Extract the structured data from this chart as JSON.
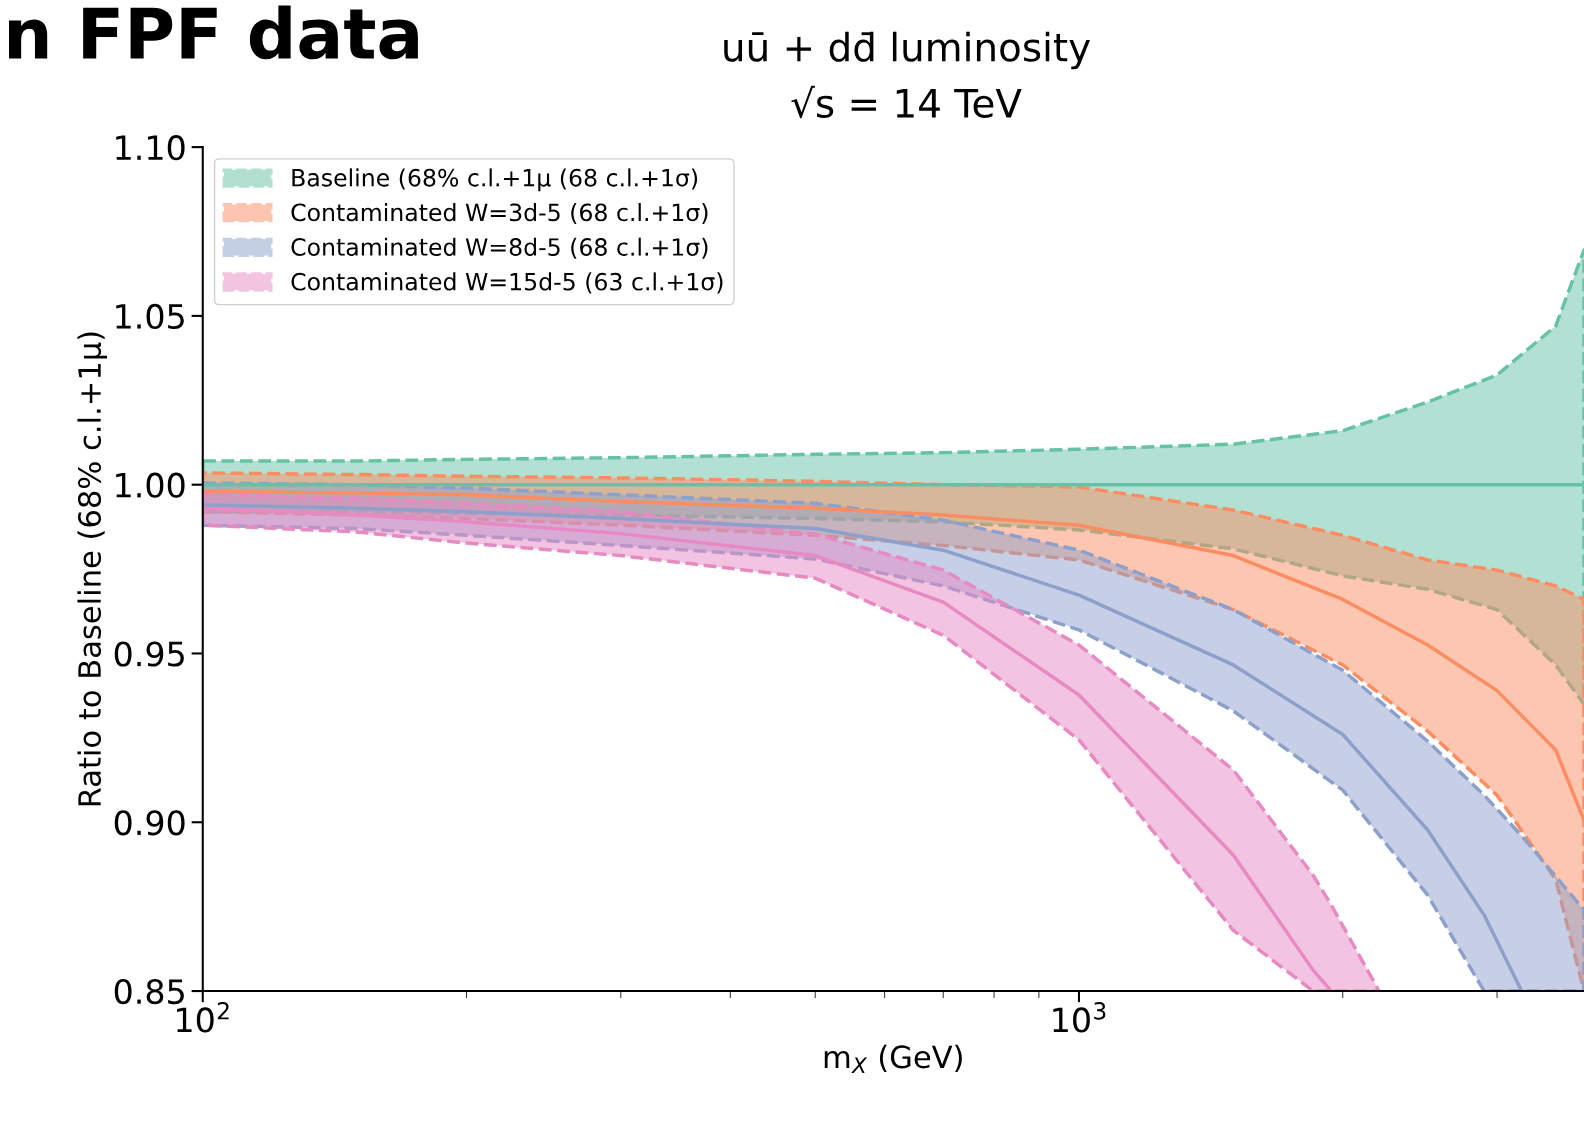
{
  "chart_data": {
    "type": "line",
    "title": "uū + dd̄ luminosity",
    "subtitle": "√s = 14 TeV",
    "xlabel": "m$_{X}$ (GeV)",
    "ylabel": "Ratio to Baseline (68% c.l.+1μ)",
    "annotations": [
      "n FPF data"
    ],
    "log": "x",
    "xlim": [
      100,
      3770
    ],
    "xticks": [
      {
        "value": 100,
        "label": "10$^{2}$"
      },
      {
        "value": 1000,
        "label": "10$^{3}$"
      }
    ],
    "ylim": [
      0.85,
      1.1
    ],
    "yticks": [
      {
        "value": 0.85,
        "label": "0.85"
      },
      {
        "value": 0.9,
        "label": "0.90"
      },
      {
        "value": 0.95,
        "label": "0.95"
      },
      {
        "value": 1.0,
        "label": "1.00"
      },
      {
        "value": 1.05,
        "label": "1.05"
      },
      {
        "value": 1.1,
        "label": "1.10"
      }
    ],
    "grid": false,
    "legend": "top left",
    "line_style": "solid",
    "series": [
      {
        "name": "Baseline (68% c.l.+1μ (68 c.l.+1σ)",
        "color": "#66c2a5",
        "x": [
          100,
          150,
          200,
          300,
          500,
          700,
          1000,
          1500,
          2000,
          2500,
          3000,
          3500,
          3770
        ],
        "values": [
          1.0,
          1.0,
          1.0,
          1.0,
          1.0,
          1.0,
          1.0,
          1.0,
          1.0,
          1.0,
          1.0,
          1.0,
          1.0
        ],
        "lower": [
          0.992,
          0.992,
          0.9915,
          0.991,
          0.99,
          0.989,
          0.9866,
          0.981,
          0.973,
          0.969,
          0.963,
          0.9466,
          0.935
        ],
        "upper": [
          1.007,
          1.007,
          1.0075,
          1.008,
          1.009,
          1.0095,
          1.0105,
          1.012,
          1.016,
          1.0245,
          1.0325,
          1.047,
          1.0695
        ]
      },
      {
        "name": "Contaminated W=3d-5 (68 c.l.+1σ)",
        "color": "#fc8d62",
        "x": [
          100,
          150,
          200,
          300,
          500,
          700,
          1000,
          1500,
          2000,
          2500,
          3000,
          3500,
          3770
        ],
        "values": [
          0.998,
          0.9975,
          0.997,
          0.995,
          0.993,
          0.991,
          0.988,
          0.979,
          0.966,
          0.9525,
          0.939,
          0.9214,
          0.9006
        ],
        "lower": [
          0.992,
          0.991,
          0.99,
          0.988,
          0.985,
          0.982,
          0.9777,
          0.963,
          0.9466,
          0.927,
          0.908,
          0.883,
          0.85
        ],
        "upper": [
          1.0035,
          1.003,
          1.0025,
          1.002,
          1.001,
          1.0,
          0.9993,
          0.9925,
          0.985,
          0.9777,
          0.9747,
          0.97,
          0.966
        ]
      },
      {
        "name": "Contaminated W=8d-5 (68 c.l.+1σ)",
        "color": "#8da0cb",
        "x": [
          100,
          150,
          200,
          300,
          500,
          700,
          1000,
          1500,
          2000,
          2500,
          2900,
          3200,
          3770
        ],
        "values": [
          0.994,
          0.993,
          0.992,
          0.99,
          0.987,
          0.9806,
          0.9673,
          0.9466,
          0.926,
          0.8977,
          0.8725,
          0.85,
          null
        ],
        "lower": [
          0.988,
          0.987,
          0.985,
          0.982,
          0.978,
          0.97,
          0.957,
          0.933,
          0.9095,
          0.8784,
          0.85,
          0.85,
          0.85
        ],
        "upper": [
          1.0005,
          1.0,
          0.999,
          0.997,
          0.9945,
          0.9895,
          0.9806,
          0.963,
          0.945,
          0.924,
          0.908,
          0.896,
          0.874
        ]
      },
      {
        "name": "Contaminated W=15d-5 (63 c.l.+1σ)",
        "color": "#e78ac3",
        "x": [
          100,
          150,
          200,
          300,
          500,
          700,
          1000,
          1500,
          1850,
          1940,
          2200
        ],
        "values": [
          0.993,
          0.991,
          0.989,
          0.9855,
          0.979,
          0.9652,
          0.9377,
          0.8903,
          0.8562,
          0.85,
          null
        ],
        "lower": [
          0.988,
          0.986,
          0.9827,
          0.979,
          0.9723,
          0.9554,
          0.9244,
          0.868,
          0.85,
          0.85,
          0.85
        ],
        "upper": [
          0.9972,
          0.996,
          0.9945,
          0.992,
          0.9854,
          0.9747,
          0.9525,
          0.9155,
          0.8843,
          0.8755,
          0.85
        ]
      }
    ]
  }
}
